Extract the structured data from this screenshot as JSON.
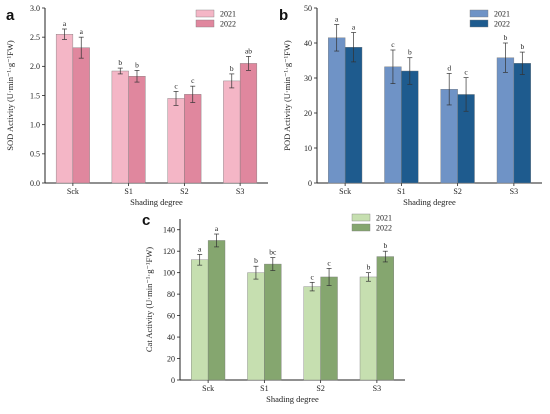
{
  "chart_data": [
    {
      "panel": "a",
      "type": "bar",
      "categories": [
        "Sck",
        "S1",
        "S2",
        "S3"
      ],
      "series": [
        {
          "name": "2021",
          "values": [
            2.55,
            1.92,
            1.45,
            1.75
          ],
          "errors": [
            0.09,
            0.05,
            0.12,
            0.12
          ],
          "letters": [
            "a",
            "b",
            "c",
            "b"
          ]
        },
        {
          "name": "2022",
          "values": [
            2.32,
            1.83,
            1.52,
            2.05
          ],
          "errors": [
            0.18,
            0.1,
            0.14,
            0.12
          ],
          "letters": [
            "a",
            "b",
            "c",
            "ab"
          ]
        }
      ],
      "colors": [
        "#f4b6c6",
        "#e0879e"
      ],
      "xlabel": "Shading degree",
      "ylabel": "SOD Activity (U·min⁻¹·g⁻¹FW)",
      "ylim": [
        0,
        3.0
      ],
      "yticks": [
        "0.0",
        "0.5",
        "1.0",
        "1.5",
        "2.0",
        "2.5",
        "3.0"
      ],
      "legend": "top-right"
    },
    {
      "panel": "b",
      "type": "bar",
      "categories": [
        "Sck",
        "S1",
        "S2",
        "S3"
      ],
      "series": [
        {
          "name": "2021",
          "values": [
            41.5,
            33.2,
            26.8,
            35.8
          ],
          "errors": [
            3.8,
            4.8,
            4.5,
            4.2
          ],
          "letters": [
            "a",
            "c",
            "d",
            "b"
          ]
        },
        {
          "name": "2022",
          "values": [
            38.8,
            32.0,
            25.3,
            34.2
          ],
          "errors": [
            4.2,
            3.8,
            4.8,
            3.2
          ],
          "letters": [
            "a",
            "b",
            "c",
            "b"
          ]
        }
      ],
      "colors": [
        "#6f93c6",
        "#1e5b8e"
      ],
      "xlabel": "Shading degree",
      "ylabel": "POD Activity (U·min⁻¹·g⁻¹FW)",
      "ylim": [
        0,
        50
      ],
      "yticks": [
        "0",
        "10",
        "20",
        "30",
        "40",
        "50"
      ],
      "legend": "top-right"
    },
    {
      "panel": "c",
      "type": "bar",
      "categories": [
        "Sck",
        "S1",
        "S2",
        "S3"
      ],
      "series": [
        {
          "name": "2021",
          "values": [
            112,
            100,
            87,
            96
          ],
          "errors": [
            5,
            6,
            4,
            4
          ],
          "letters": [
            "a",
            "b",
            "c",
            "b"
          ]
        },
        {
          "name": "2022",
          "values": [
            130,
            108,
            96,
            115
          ],
          "errors": [
            6,
            6,
            8,
            5
          ],
          "letters": [
            "a",
            "bc",
            "c",
            "b"
          ]
        }
      ],
      "colors": [
        "#c6dfb0",
        "#85a66f"
      ],
      "xlabel": "Shading degree",
      "ylabel": "Cat Activity (U·min⁻¹·g⁻¹FW)",
      "ylim": [
        0,
        150
      ],
      "yticks": [
        "0",
        "20",
        "40",
        "60",
        "80",
        "100",
        "120",
        "140"
      ],
      "yticks_values": [
        0,
        20,
        40,
        60,
        80,
        100,
        120,
        140
      ],
      "legend": "top-right"
    }
  ]
}
